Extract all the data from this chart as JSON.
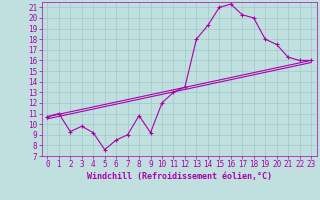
{
  "xlabel": "Windchill (Refroidissement éolien,°C)",
  "xlim": [
    -0.5,
    23.5
  ],
  "ylim": [
    7,
    21.5
  ],
  "xticks": [
    0,
    1,
    2,
    3,
    4,
    5,
    6,
    7,
    8,
    9,
    10,
    11,
    12,
    13,
    14,
    15,
    16,
    17,
    18,
    19,
    20,
    21,
    22,
    23
  ],
  "yticks": [
    7,
    8,
    9,
    10,
    11,
    12,
    13,
    14,
    15,
    16,
    17,
    18,
    19,
    20,
    21
  ],
  "bg_color": "#c0e0e0",
  "line_color": "#aa00aa",
  "grid_color": "#a0c8c8",
  "line1_x": [
    0,
    1,
    2,
    3,
    4,
    5,
    6,
    7,
    8,
    9,
    10,
    11,
    12,
    13,
    14,
    15,
    16,
    17,
    18,
    19,
    20,
    21,
    22,
    23
  ],
  "line1_y": [
    10.7,
    11.0,
    9.3,
    9.8,
    9.2,
    7.6,
    8.5,
    9.0,
    10.8,
    9.2,
    12.0,
    13.0,
    13.5,
    18.0,
    19.3,
    21.0,
    21.3,
    20.3,
    20.0,
    18.0,
    17.5,
    16.3,
    16.0,
    16.0
  ],
  "line2_x": [
    0,
    23
  ],
  "line2_y": [
    10.7,
    16.0
  ],
  "line3_x": [
    0,
    23
  ],
  "line3_y": [
    10.5,
    15.8
  ],
  "tick_fontsize": 5.5,
  "label_fontsize": 6.0
}
